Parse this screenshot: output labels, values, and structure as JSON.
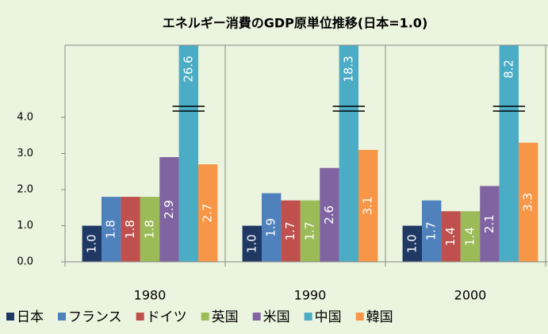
{
  "chart_data": {
    "type": "bar",
    "title": "エネルギー消費のGDP原単位推移(日本=1.0)",
    "categories": [
      "1980",
      "1990",
      "2000"
    ],
    "series": [
      {
        "name": "日本",
        "color": "#1f3864",
        "values": [
          1.0,
          1.0,
          1.0
        ],
        "value_labels": [
          "1.0",
          "1.0",
          "1.0"
        ]
      },
      {
        "name": "フランス",
        "color": "#4f81bd",
        "values": [
          1.8,
          1.9,
          1.7
        ]
      },
      {
        "name": "ドイツ",
        "color": "#c0504d",
        "values": [
          1.8,
          1.7,
          1.4
        ]
      },
      {
        "name": "英国",
        "color": "#9bbb59",
        "values": [
          1.8,
          1.7,
          1.4
        ]
      },
      {
        "name": "米国",
        "color": "#8064a2",
        "values": [
          2.9,
          2.6,
          2.1
        ]
      },
      {
        "name": "中国",
        "color": "#4bacc6",
        "values": [
          26.6,
          18.3,
          8.2
        ]
      },
      {
        "name": "韓国",
        "color": "#f79646",
        "values": [
          2.7,
          3.1,
          3.3
        ]
      }
    ],
    "ylim": [
      0,
      6
    ],
    "yticks": [
      {
        "value": 0,
        "label": "0.0"
      },
      {
        "value": 1,
        "label": "1.0"
      },
      {
        "value": 2,
        "label": "2.0"
      },
      {
        "value": 3,
        "label": "3.0"
      },
      {
        "value": 4,
        "label": "4.0"
      }
    ],
    "legend": "bottom"
  }
}
